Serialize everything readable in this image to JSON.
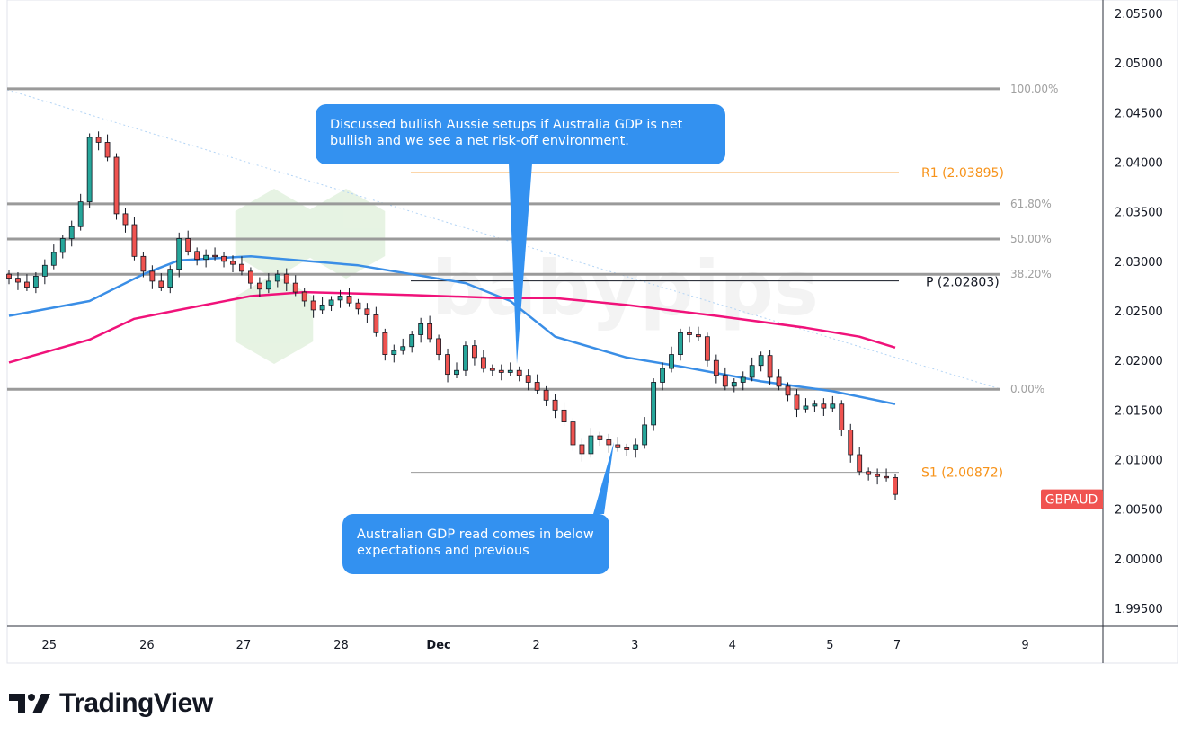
{
  "chart_data": {
    "type": "candlestick",
    "symbol": "GBPAUD",
    "ylim": [
      1.993,
      2.0565
    ],
    "y_ticks": [
      "2.05500",
      "2.05000",
      "2.04500",
      "2.04000",
      "2.03500",
      "2.03000",
      "2.02500",
      "2.02000",
      "2.01500",
      "2.01000",
      "2.00500",
      "2.00000",
      "1.99500"
    ],
    "x_ticks": [
      {
        "label": "25",
        "index": 4.5
      },
      {
        "label": "26",
        "index": 15.4
      },
      {
        "label": "27",
        "index": 26.2
      },
      {
        "label": "28",
        "index": 37.1
      },
      {
        "label": "Dec",
        "index": 48,
        "bold": true
      },
      {
        "label": "2",
        "index": 58.9
      },
      {
        "label": "3",
        "index": 69.9
      },
      {
        "label": "4",
        "index": 80.8
      },
      {
        "label": "5",
        "index": 91.7
      },
      {
        "label": "7",
        "index": 99.2
      },
      {
        "label": "9",
        "index": 113.5
      }
    ],
    "closes": [
      2.0283,
      2.0279,
      2.0274,
      2.0285,
      2.0296,
      2.0309,
      2.0323,
      2.0335,
      2.036,
      2.0425,
      2.042,
      2.0405,
      2.0348,
      2.0337,
      2.0305,
      2.029,
      2.028,
      2.0274,
      2.0292,
      2.0323,
      2.031,
      2.0302,
      2.0306,
      2.0305,
      2.03,
      2.0297,
      2.029,
      2.0278,
      2.0272,
      2.028,
      2.0287,
      2.0278,
      2.0269,
      2.026,
      2.0251,
      2.0256,
      2.0261,
      2.0265,
      2.0258,
      2.0252,
      2.0246,
      2.0228,
      2.0206,
      2.021,
      2.0214,
      2.0226,
      2.0237,
      2.0222,
      2.0206,
      2.0186,
      2.019,
      2.0215,
      2.0203,
      2.0192,
      2.019,
      2.0188,
      2.019,
      2.0185,
      2.0178,
      2.017,
      2.016,
      2.015,
      2.0138,
      2.0115,
      2.0106,
      2.0124,
      2.012,
      2.0115,
      2.0112,
      2.011,
      2.0115,
      2.0135,
      2.0178,
      2.0192,
      2.0206,
      2.0228,
      2.0226,
      2.0224,
      2.02,
      2.0185,
      2.0174,
      2.0178,
      2.0183,
      2.0195,
      2.0205,
      2.0183,
      2.0174,
      2.0165,
      2.0151,
      2.0154,
      2.0156,
      2.0152,
      2.0156,
      2.013,
      2.0105,
      2.0088,
      2.0085,
      2.0083,
      2.0082,
      2.0065
    ],
    "moving_averages": [
      {
        "color": "#3a8ee6",
        "points": [
          [
            0,
            2.0245
          ],
          [
            9,
            2.026
          ],
          [
            15,
            2.0287
          ],
          [
            19,
            2.0301
          ],
          [
            27,
            2.0305
          ],
          [
            39,
            2.0296
          ],
          [
            45,
            2.0287
          ],
          [
            51,
            2.0278
          ],
          [
            56,
            2.026
          ],
          [
            61,
            2.0224
          ],
          [
            69,
            2.0203
          ],
          [
            75,
            2.0194
          ],
          [
            84,
            2.0179
          ],
          [
            92,
            2.0169
          ],
          [
            99,
            2.0156
          ]
        ]
      },
      {
        "color": "#f0127a",
        "points": [
          [
            0,
            2.0198
          ],
          [
            9,
            2.0221
          ],
          [
            14,
            2.0242
          ],
          [
            19,
            2.0251
          ],
          [
            27,
            2.0265
          ],
          [
            33,
            2.0269
          ],
          [
            45,
            2.0266
          ],
          [
            55,
            2.0263
          ],
          [
            61,
            2.0263
          ],
          [
            69,
            2.0256
          ],
          [
            79,
            2.0245
          ],
          [
            89,
            2.0233
          ],
          [
            95,
            2.0224
          ],
          [
            99,
            2.0213
          ]
        ]
      }
    ],
    "fibonacci": [
      {
        "label": "100.00%",
        "price": 2.0474
      },
      {
        "label": "61.80%",
        "price": 2.0358
      },
      {
        "label": "50.00%",
        "price": 2.03225
      },
      {
        "label": "38.20%",
        "price": 2.0287
      },
      {
        "label": "0.00%",
        "price": 2.0171
      }
    ],
    "pivots": [
      {
        "label": "R1 (2.03895)",
        "price": 2.03895,
        "color": "#f7931a"
      },
      {
        "label": "P (2.02803)",
        "price": 2.02803,
        "color": "#131722"
      },
      {
        "label": "S1 (2.00872)",
        "price": 2.00872,
        "color": "#f7931a"
      }
    ],
    "last_price_label": {
      "text": "GBPAUD",
      "price": 2.006,
      "color": "#f05350"
    },
    "colors": {
      "up": "#26a69a",
      "down": "#ef5350"
    }
  },
  "annotations": {
    "top": "Discussed bullish Aussie setups if Australia GDP is net bullish and we see a net risk-off environment.",
    "bottom": "Australian GDP read comes in below expectations and previous"
  },
  "watermark": "babypips",
  "footer": {
    "brand": "TradingView"
  }
}
